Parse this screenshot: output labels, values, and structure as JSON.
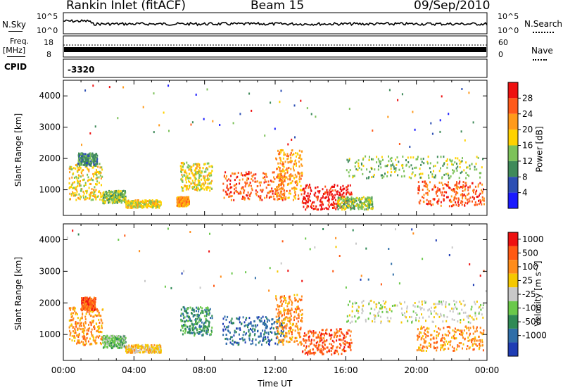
{
  "header": {
    "station": "Rankin Inlet (fitACF)",
    "beam": "Beam 15",
    "date": "09/Sep/2010"
  },
  "noise_panel": {
    "left_label": "N.Sky",
    "right_label": "N.Search",
    "tick_top": "10^5",
    "tick_bottom": "10^0"
  },
  "freq_panel": {
    "left_label_1": "Freq.",
    "left_label_2": "[MHz]",
    "right_label": "Nave",
    "left_ticks": [
      "18",
      "8"
    ],
    "right_ticks": [
      "60",
      "0"
    ]
  },
  "cpid_panel": {
    "label": "CPID",
    "value": "-3320"
  },
  "chart_data": [
    {
      "type": "heatmap",
      "name": "power",
      "ylabel": "Slant Range [km]",
      "yticks": [
        1000,
        2000,
        3000,
        4000
      ],
      "ylim": [
        180,
        4500
      ],
      "xlim": [
        0,
        24
      ],
      "colorbar": {
        "label": "Power [dB]",
        "ticks": [
          "4",
          "8",
          "12",
          "16",
          "20",
          "24",
          "28"
        ],
        "colors": [
          "#1a1aff",
          "#2d4fb4",
          "#3f8a5a",
          "#7dc25a",
          "#ffd200",
          "#ff9a1a",
          "#ff5a1a",
          "#ee1111"
        ]
      },
      "bands": [
        {
          "t0": 0.3,
          "t1": 2.2,
          "r0": 700,
          "r1": 1900,
          "level": 4
        },
        {
          "t0": 0.8,
          "t1": 1.9,
          "r0": 1800,
          "r1": 2200,
          "level": 2
        },
        {
          "t0": 2.2,
          "t1": 3.5,
          "r0": 600,
          "r1": 1000,
          "level": 3
        },
        {
          "t0": 3.5,
          "t1": 5.5,
          "r0": 450,
          "r1": 700,
          "level": 4
        },
        {
          "t0": 6.4,
          "t1": 7.1,
          "r0": 500,
          "r1": 800,
          "level": 5
        },
        {
          "t0": 6.6,
          "t1": 8.4,
          "r0": 1000,
          "r1": 1900,
          "level": 4
        },
        {
          "t0": 9.0,
          "t1": 12.5,
          "r0": 700,
          "r1": 1600,
          "level": 6
        },
        {
          "t0": 12.0,
          "t1": 13.5,
          "r0": 700,
          "r1": 2300,
          "level": 5
        },
        {
          "t0": 13.5,
          "t1": 16.3,
          "r0": 400,
          "r1": 1200,
          "level": 7
        },
        {
          "t0": 15.5,
          "t1": 17.5,
          "r0": 400,
          "r1": 800,
          "level": 3
        },
        {
          "t0": 16.0,
          "t1": 23.8,
          "r0": 1400,
          "r1": 2100,
          "level": 3
        },
        {
          "t0": 20.0,
          "t1": 23.8,
          "r0": 500,
          "r1": 1300,
          "level": 6
        }
      ]
    },
    {
      "type": "heatmap",
      "name": "velocity",
      "ylabel": "Slant Range [km]",
      "yticks": [
        1000,
        2000,
        3000,
        4000
      ],
      "ylim": [
        180,
        4500
      ],
      "xlim": [
        0,
        24
      ],
      "xticks": [
        "00:00",
        "04:00",
        "08:00",
        "12:00",
        "16:00",
        "20:00",
        "00:00"
      ],
      "xlabel": "Time UT",
      "colorbar": {
        "label": "Velocity [m s⁻¹]",
        "ticks": [
          "1000",
          "500",
          "100",
          "25",
          "-25",
          "-100",
          "-500",
          "-1000"
        ],
        "colors": [
          "#1f3db4",
          "#2f6ea8",
          "#2f8a55",
          "#6ac84a",
          "#c8c8c8",
          "#f5c800",
          "#ff8c1a",
          "#ff5a14",
          "#ee1111"
        ]
      },
      "bands": [
        {
          "t0": 0.3,
          "t1": 2.2,
          "r0": 700,
          "r1": 1900,
          "level": 6
        },
        {
          "t0": 1.0,
          "t1": 1.8,
          "r0": 1800,
          "r1": 2200,
          "level": 7
        },
        {
          "t0": 2.2,
          "t1": 3.5,
          "r0": 600,
          "r1": 1000,
          "level": 3
        },
        {
          "t0": 3.5,
          "t1": 5.5,
          "r0": 450,
          "r1": 700,
          "level": 5
        },
        {
          "t0": 6.6,
          "t1": 8.4,
          "r0": 1000,
          "r1": 1900,
          "level": 2
        },
        {
          "t0": 9.0,
          "t1": 12.5,
          "r0": 700,
          "r1": 1600,
          "level": 1
        },
        {
          "t0": 12.0,
          "t1": 13.5,
          "r0": 700,
          "r1": 2300,
          "level": 6
        },
        {
          "t0": 13.5,
          "t1": 16.3,
          "r0": 400,
          "r1": 1200,
          "level": 7
        },
        {
          "t0": 16.0,
          "t1": 23.8,
          "r0": 1400,
          "r1": 2100,
          "level": 4
        },
        {
          "t0": 20.0,
          "t1": 23.8,
          "r0": 500,
          "r1": 1300,
          "level": 6
        }
      ]
    }
  ]
}
